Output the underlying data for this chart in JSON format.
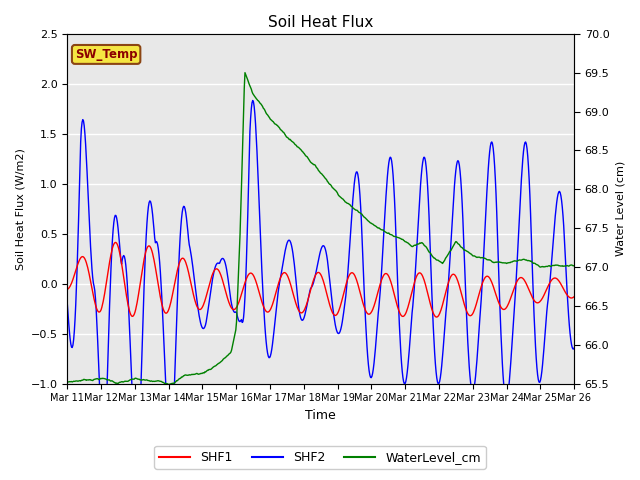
{
  "title": "Soil Heat Flux",
  "ylabel_left": "Soil Heat Flux (W/m2)",
  "ylabel_right": "Water Level (cm)",
  "xlabel": "Time",
  "ylim_left": [
    -1.0,
    2.5
  ],
  "ylim_right": [
    65.5,
    70.0
  ],
  "bg_color": "#e8e8e8",
  "annotation_label": "SW_Temp",
  "annotation_box_facecolor": "#f5e642",
  "annotation_box_edgecolor": "#8b4513",
  "annotation_text_color": "#8b0000",
  "legend_entries": [
    "SHF1",
    "SHF2",
    "WaterLevel_cm"
  ],
  "line_colors": [
    "red",
    "blue",
    "green"
  ],
  "xtick_labels": [
    "Mar 11",
    "Mar 12",
    "Mar 13",
    "Mar 14",
    "Mar 15",
    "Mar 16",
    "Mar 17",
    "Mar 18",
    "Mar 19",
    "Mar 20",
    "Mar 21",
    "Mar 22",
    "Mar 23",
    "Mar 24",
    "Mar 25",
    "Mar 26"
  ],
  "shf1_amp_days": [
    0,
    1,
    2,
    3,
    4,
    5,
    6,
    7,
    8,
    9,
    10,
    11,
    12,
    13,
    14,
    15
  ],
  "shf1_amp_vals": [
    0.12,
    0.35,
    0.38,
    0.3,
    0.22,
    0.18,
    0.2,
    0.2,
    0.22,
    0.2,
    0.22,
    0.22,
    0.2,
    0.16,
    0.12,
    0.1
  ],
  "shf1_offset_days": [
    0,
    2,
    5,
    8,
    12,
    15
  ],
  "shf1_offset_vals": [
    0.05,
    0.05,
    -0.08,
    -0.1,
    -0.12,
    -0.04
  ],
  "shf1_phase_shift": 0.35,
  "shf2_amp_days": [
    0,
    0.4,
    0.8,
    1.1,
    1.6,
    2.1,
    2.6,
    3.1,
    3.6,
    4.1,
    4.5,
    4.8,
    5.0,
    5.15,
    5.4,
    5.8,
    6.3,
    6.8,
    7.2,
    7.7,
    8.2,
    8.7,
    9.2,
    9.7,
    10.2,
    10.7,
    11.2,
    11.7,
    12.2,
    12.7,
    13.2,
    13.7,
    14.2,
    14.7,
    15.0
  ],
  "shf2_amp_vals": [
    0.2,
    2.07,
    0.2,
    2.05,
    0.2,
    2.05,
    0.45,
    1.85,
    0.45,
    0.45,
    0.2,
    0.45,
    0.28,
    0.5,
    2.12,
    1.05,
    0.28,
    0.6,
    0.1,
    0.5,
    0.5,
    1.4,
    0.65,
    1.55,
    0.65,
    1.55,
    0.65,
    1.5,
    0.82,
    1.7,
    0.82,
    1.7,
    0.5,
    1.12,
    0.65
  ],
  "shf2_phase_shift": 0.55,
  "wl_days": [
    0,
    0.5,
    1.0,
    1.5,
    2.0,
    2.5,
    3.0,
    3.5,
    4.0,
    4.3,
    4.6,
    4.85,
    5.0,
    5.12,
    5.25,
    5.5,
    6.0,
    6.5,
    7.0,
    7.5,
    8.0,
    8.5,
    9.0,
    9.3,
    9.6,
    9.9,
    10.2,
    10.5,
    10.8,
    11.1,
    11.5,
    12.0,
    12.5,
    13.0,
    13.5,
    14.0,
    14.5,
    15.0
  ],
  "wl_vals": [
    65.52,
    65.55,
    65.58,
    65.52,
    65.55,
    65.5,
    65.48,
    65.6,
    65.62,
    65.7,
    65.8,
    65.9,
    66.2,
    67.5,
    69.5,
    69.2,
    68.9,
    68.65,
    68.45,
    68.2,
    67.95,
    67.75,
    67.6,
    67.5,
    67.45,
    67.4,
    67.3,
    67.35,
    67.2,
    67.1,
    67.4,
    67.2,
    67.1,
    67.05,
    67.1,
    67.0,
    67.05,
    67.02
  ]
}
